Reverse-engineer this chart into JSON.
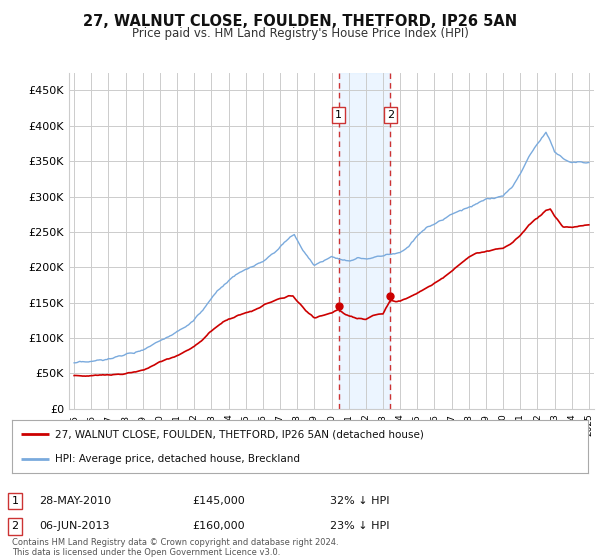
{
  "title": "27, WALNUT CLOSE, FOULDEN, THETFORD, IP26 5AN",
  "subtitle": "Price paid vs. HM Land Registry's House Price Index (HPI)",
  "legend_red": "27, WALNUT CLOSE, FOULDEN, THETFORD, IP26 5AN (detached house)",
  "legend_blue": "HPI: Average price, detached house, Breckland",
  "footnote": "Contains HM Land Registry data © Crown copyright and database right 2024.\nThis data is licensed under the Open Government Licence v3.0.",
  "transaction1_label": "1",
  "transaction1_date": "28-MAY-2010",
  "transaction1_price": "£145,000",
  "transaction1_hpi": "32% ↓ HPI",
  "transaction2_label": "2",
  "transaction2_date": "06-JUN-2013",
  "transaction2_price": "£160,000",
  "transaction2_hpi": "23% ↓ HPI",
  "ylim": [
    0,
    475000
  ],
  "yticks": [
    0,
    50000,
    100000,
    150000,
    200000,
    250000,
    300000,
    350000,
    400000,
    450000
  ],
  "background_color": "#ffffff",
  "grid_color": "#cccccc",
  "red_color": "#cc0000",
  "blue_color": "#7aaadd",
  "vline_color": "#cc3333",
  "shade_color": "#ddeeff",
  "x_start_year": 1995,
  "x_end_year": 2025,
  "transaction1_x": 2010.41,
  "transaction2_x": 2013.43,
  "hpi_points": [
    [
      1995.0,
      65000
    ],
    [
      1995.5,
      64000
    ],
    [
      1996.0,
      63000
    ],
    [
      1996.5,
      64000
    ],
    [
      1997.0,
      66000
    ],
    [
      1997.5,
      68000
    ],
    [
      1998.0,
      72000
    ],
    [
      1998.5,
      75000
    ],
    [
      1999.0,
      80000
    ],
    [
      1999.5,
      88000
    ],
    [
      2000.0,
      95000
    ],
    [
      2000.5,
      103000
    ],
    [
      2001.0,
      110000
    ],
    [
      2001.5,
      118000
    ],
    [
      2002.0,
      128000
    ],
    [
      2002.5,
      140000
    ],
    [
      2003.0,
      155000
    ],
    [
      2003.5,
      168000
    ],
    [
      2004.0,
      178000
    ],
    [
      2004.5,
      185000
    ],
    [
      2005.0,
      190000
    ],
    [
      2005.5,
      195000
    ],
    [
      2006.0,
      200000
    ],
    [
      2006.5,
      210000
    ],
    [
      2007.0,
      220000
    ],
    [
      2007.5,
      232000
    ],
    [
      2007.83,
      238000
    ],
    [
      2008.0,
      230000
    ],
    [
      2008.5,
      210000
    ],
    [
      2009.0,
      195000
    ],
    [
      2009.5,
      200000
    ],
    [
      2010.0,
      208000
    ],
    [
      2010.5,
      207000
    ],
    [
      2011.0,
      205000
    ],
    [
      2011.5,
      208000
    ],
    [
      2012.0,
      205000
    ],
    [
      2012.5,
      208000
    ],
    [
      2013.0,
      210000
    ],
    [
      2013.5,
      212000
    ],
    [
      2014.0,
      215000
    ],
    [
      2014.5,
      225000
    ],
    [
      2015.0,
      240000
    ],
    [
      2015.5,
      252000
    ],
    [
      2016.0,
      258000
    ],
    [
      2016.5,
      265000
    ],
    [
      2017.0,
      275000
    ],
    [
      2017.5,
      280000
    ],
    [
      2018.0,
      285000
    ],
    [
      2018.5,
      290000
    ],
    [
      2019.0,
      295000
    ],
    [
      2019.5,
      295000
    ],
    [
      2020.0,
      298000
    ],
    [
      2020.5,
      310000
    ],
    [
      2021.0,
      330000
    ],
    [
      2021.5,
      355000
    ],
    [
      2022.0,
      375000
    ],
    [
      2022.5,
      390000
    ],
    [
      2022.83,
      375000
    ],
    [
      2023.0,
      365000
    ],
    [
      2023.5,
      355000
    ],
    [
      2024.0,
      350000
    ],
    [
      2024.5,
      352000
    ],
    [
      2025.0,
      352000
    ]
  ],
  "red_points": [
    [
      1995.0,
      47000
    ],
    [
      1995.5,
      46000
    ],
    [
      1996.0,
      47000
    ],
    [
      1996.5,
      48000
    ],
    [
      1997.0,
      50000
    ],
    [
      1997.5,
      51000
    ],
    [
      1998.0,
      52000
    ],
    [
      1998.5,
      54000
    ],
    [
      1999.0,
      57000
    ],
    [
      1999.5,
      62000
    ],
    [
      2000.0,
      67000
    ],
    [
      2000.5,
      72000
    ],
    [
      2001.0,
      77000
    ],
    [
      2001.5,
      83000
    ],
    [
      2002.0,
      90000
    ],
    [
      2002.5,
      100000
    ],
    [
      2003.0,
      112000
    ],
    [
      2003.5,
      122000
    ],
    [
      2004.0,
      130000
    ],
    [
      2004.5,
      135000
    ],
    [
      2005.0,
      138000
    ],
    [
      2005.5,
      142000
    ],
    [
      2006.0,
      148000
    ],
    [
      2006.5,
      153000
    ],
    [
      2007.0,
      158000
    ],
    [
      2007.5,
      162000
    ],
    [
      2007.75,
      163000
    ],
    [
      2008.0,
      155000
    ],
    [
      2008.5,
      142000
    ],
    [
      2009.0,
      132000
    ],
    [
      2009.5,
      136000
    ],
    [
      2010.0,
      140000
    ],
    [
      2010.41,
      145000
    ],
    [
      2010.8,
      138000
    ],
    [
      2011.0,
      136000
    ],
    [
      2011.5,
      133000
    ],
    [
      2012.0,
      132000
    ],
    [
      2012.5,
      138000
    ],
    [
      2013.0,
      140000
    ],
    [
      2013.43,
      160000
    ],
    [
      2013.8,
      158000
    ],
    [
      2014.0,
      160000
    ],
    [
      2014.5,
      165000
    ],
    [
      2015.0,
      172000
    ],
    [
      2015.5,
      180000
    ],
    [
      2016.0,
      188000
    ],
    [
      2016.5,
      195000
    ],
    [
      2017.0,
      205000
    ],
    [
      2017.5,
      215000
    ],
    [
      2018.0,
      225000
    ],
    [
      2018.5,
      230000
    ],
    [
      2019.0,
      232000
    ],
    [
      2019.5,
      235000
    ],
    [
      2020.0,
      238000
    ],
    [
      2020.5,
      245000
    ],
    [
      2021.0,
      258000
    ],
    [
      2021.5,
      272000
    ],
    [
      2022.0,
      282000
    ],
    [
      2022.5,
      292000
    ],
    [
      2022.75,
      295000
    ],
    [
      2023.0,
      285000
    ],
    [
      2023.5,
      270000
    ],
    [
      2024.0,
      268000
    ],
    [
      2024.5,
      270000
    ],
    [
      2025.0,
      272000
    ]
  ]
}
